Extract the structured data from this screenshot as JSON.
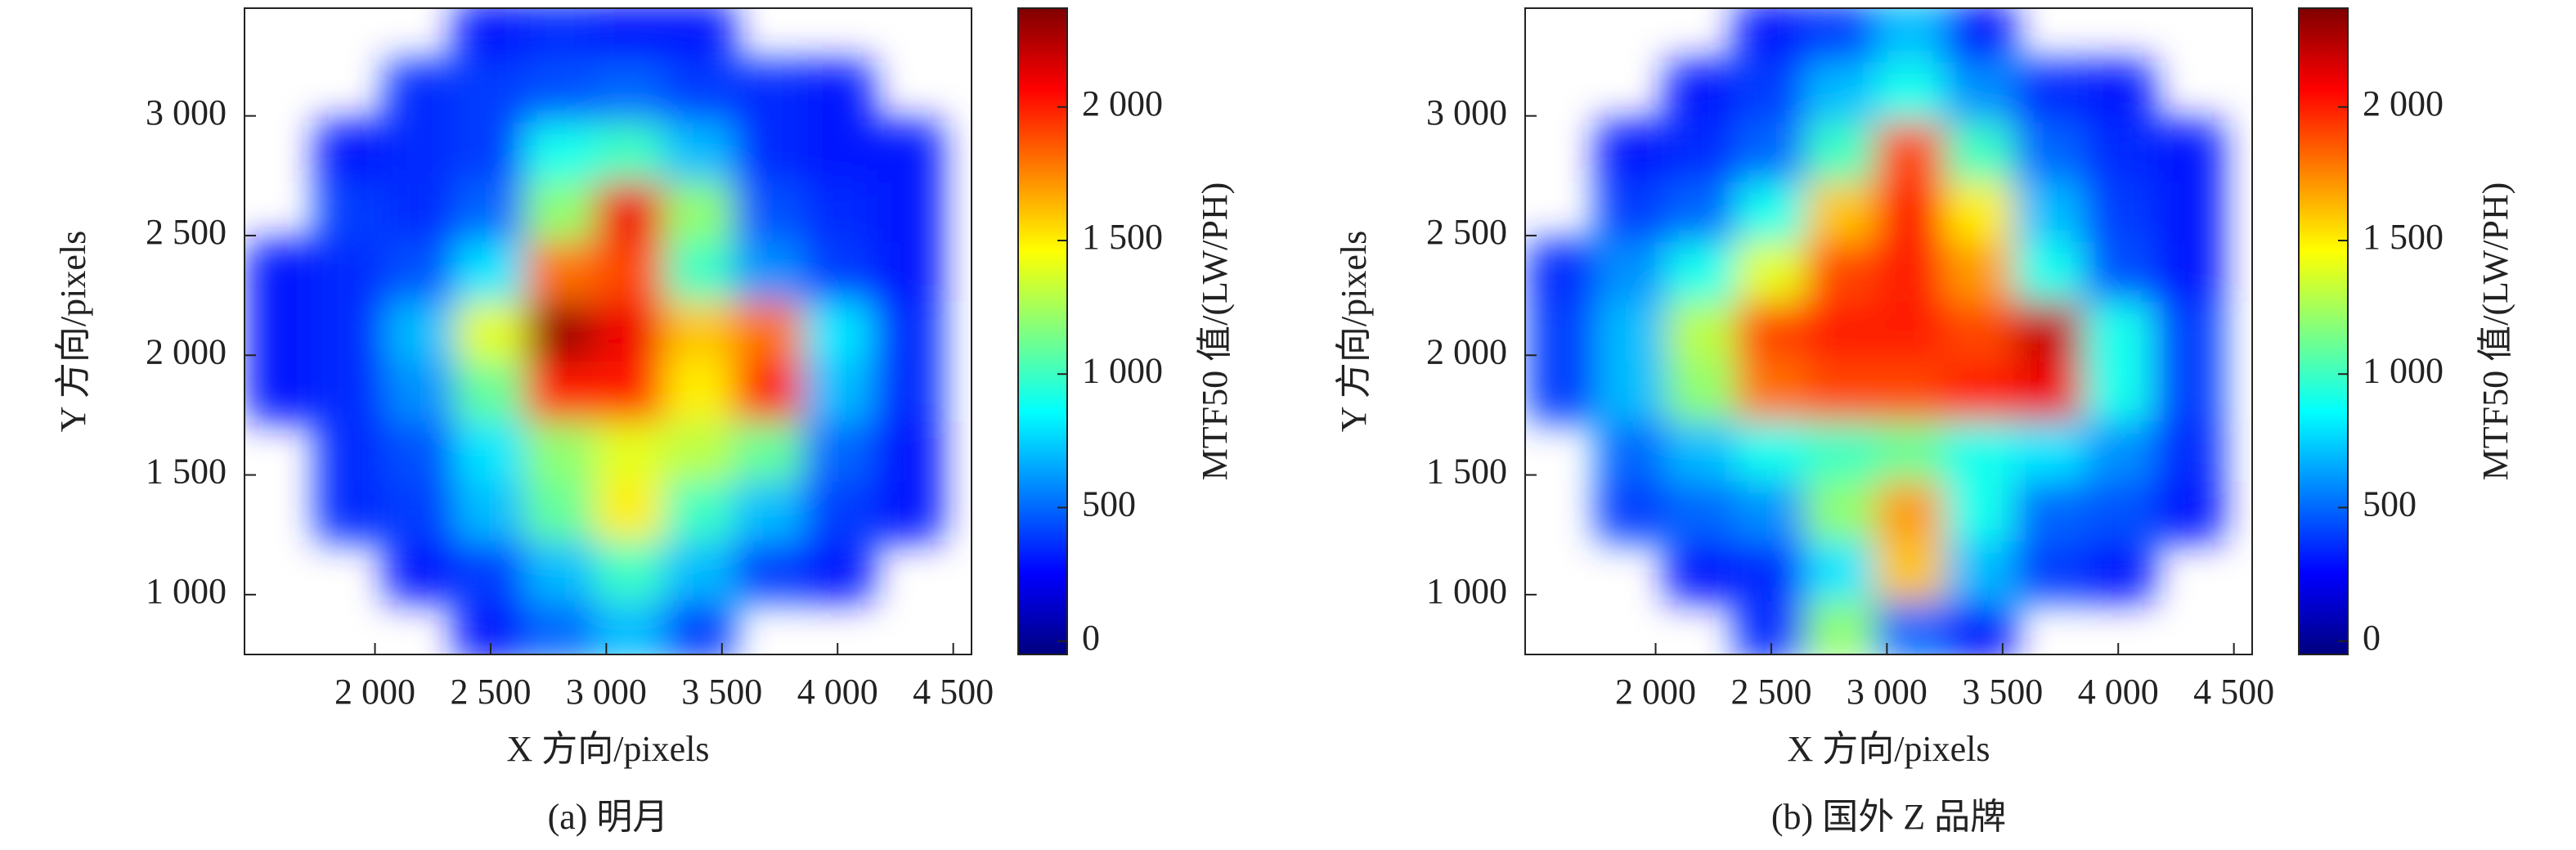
{
  "chart_data": [
    {
      "type": "heatmap",
      "colormap": "jet",
      "caption": "(a) 明月",
      "x_label": "X 方向/pixels",
      "y_label": "Y 方向/pixels",
      "colorbar_label": "MTF50 值/(LW/PH)",
      "xlim": [
        1436,
        4579
      ],
      "ylim": [
        750,
        3450
      ],
      "clim": [
        -50,
        2370
      ],
      "xticks": [
        {
          "value": 2000,
          "label": "2 000"
        },
        {
          "value": 2500,
          "label": "2 500"
        },
        {
          "value": 3000,
          "label": "3 000"
        },
        {
          "value": 3500,
          "label": "3 500"
        },
        {
          "value": 4000,
          "label": "4 000"
        },
        {
          "value": 4500,
          "label": "4 500"
        }
      ],
      "yticks": [
        {
          "value": 1000,
          "label": "1 000"
        },
        {
          "value": 1500,
          "label": "1 500"
        },
        {
          "value": 2000,
          "label": "2 000"
        },
        {
          "value": 2500,
          "label": "2 500"
        },
        {
          "value": 3000,
          "label": "3 000"
        }
      ],
      "cticks": [
        0,
        500,
        {
          "value": 1000,
          "label": "1 000"
        },
        {
          "value": 1500,
          "label": "1 500"
        },
        {
          "value": 2000,
          "label": "2 000"
        }
      ],
      "x": [
        1600,
        1900,
        2200,
        2500,
        2800,
        3100,
        3400,
        3700,
        4000,
        4300,
        4600
      ],
      "y": [
        850,
        1100,
        1350,
        1600,
        1850,
        2100,
        2350,
        2600,
        2850,
        3100,
        3350
      ],
      "z": [
        [
          null,
          null,
          null,
          300,
          500,
          700,
          400,
          null,
          null,
          null,
          null
        ],
        [
          null,
          null,
          300,
          400,
          700,
          1000,
          700,
          400,
          300,
          null,
          null
        ],
        [
          null,
          350,
          400,
          700,
          1100,
          1500,
          1000,
          700,
          400,
          300,
          null
        ],
        [
          null,
          350,
          450,
          800,
          1200,
          1400,
          1300,
          1100,
          500,
          300,
          null
        ],
        [
          300,
          350,
          600,
          1100,
          2000,
          2000,
          1500,
          2000,
          700,
          350,
          null
        ],
        [
          300,
          350,
          700,
          1400,
          2300,
          2100,
          1600,
          1800,
          800,
          350,
          null
        ],
        [
          300,
          350,
          450,
          800,
          1800,
          1900,
          1000,
          600,
          400,
          300,
          null
        ],
        [
          null,
          400,
          350,
          500,
          1200,
          2100,
          1200,
          450,
          350,
          300,
          null
        ],
        [
          null,
          300,
          350,
          400,
          900,
          1000,
          700,
          350,
          300,
          300,
          null
        ],
        [
          null,
          null,
          350,
          400,
          450,
          500,
          400,
          350,
          300,
          null,
          null
        ],
        [
          null,
          null,
          null,
          300,
          350,
          300,
          300,
          null,
          null,
          null,
          null
        ]
      ]
    },
    {
      "type": "heatmap",
      "colormap": "jet",
      "caption": "(b) 国外 Z 品牌",
      "x_label": "X 方向/pixels",
      "y_label": "Y 方向/pixels",
      "colorbar_label": "MTF50 值/(LW/PH)",
      "xlim": [
        1436,
        4579
      ],
      "ylim": [
        750,
        3450
      ],
      "clim": [
        -50,
        2370
      ],
      "xticks": [
        {
          "value": 2000,
          "label": "2 000"
        },
        {
          "value": 2500,
          "label": "2 500"
        },
        {
          "value": 3000,
          "label": "3 000"
        },
        {
          "value": 3500,
          "label": "3 500"
        },
        {
          "value": 4000,
          "label": "4 000"
        },
        {
          "value": 4500,
          "label": "4 500"
        }
      ],
      "yticks": [
        {
          "value": 1000,
          "label": "1 000"
        },
        {
          "value": 1500,
          "label": "1 500"
        },
        {
          "value": 2000,
          "label": "2 000"
        },
        {
          "value": 2500,
          "label": "2 500"
        },
        {
          "value": 3000,
          "label": "3 000"
        }
      ],
      "cticks": [
        0,
        500,
        {
          "value": 1000,
          "label": "1 000"
        },
        {
          "value": 1500,
          "label": "1 500"
        },
        {
          "value": 2000,
          "label": "2 000"
        }
      ],
      "x": [
        1600,
        1900,
        2200,
        2500,
        2800,
        3100,
        3400,
        3700,
        4000,
        4300,
        4600
      ],
      "y": [
        850,
        1100,
        1350,
        1600,
        1850,
        2100,
        2350,
        2600,
        2850,
        3100,
        3350
      ],
      "z": [
        [
          null,
          null,
          null,
          350,
          1200,
          500,
          300,
          null,
          null,
          null,
          null
        ],
        [
          null,
          null,
          300,
          350,
          800,
          1600,
          700,
          400,
          300,
          null,
          null
        ],
        [
          null,
          400,
          500,
          600,
          1200,
          1700,
          900,
          500,
          450,
          300,
          null
        ],
        [
          null,
          500,
          700,
          900,
          1000,
          1100,
          900,
          800,
          600,
          350,
          null
        ],
        [
          400,
          700,
          1200,
          1800,
          1900,
          1900,
          2000,
          2100,
          900,
          400,
          null
        ],
        [
          400,
          700,
          1300,
          1900,
          2000,
          2000,
          1900,
          2200,
          900,
          400,
          null
        ],
        [
          350,
          600,
          900,
          1400,
          1900,
          2000,
          1700,
          900,
          450,
          300,
          null
        ],
        [
          null,
          400,
          500,
          900,
          1600,
          2000,
          1500,
          700,
          400,
          300,
          null
        ],
        [
          null,
          300,
          350,
          500,
          1000,
          1900,
          1000,
          500,
          350,
          300,
          null
        ],
        [
          null,
          null,
          300,
          400,
          700,
          900,
          600,
          350,
          300,
          null,
          null
        ],
        [
          null,
          null,
          null,
          300,
          400,
          700,
          300,
          null,
          null,
          null,
          null
        ]
      ]
    }
  ]
}
